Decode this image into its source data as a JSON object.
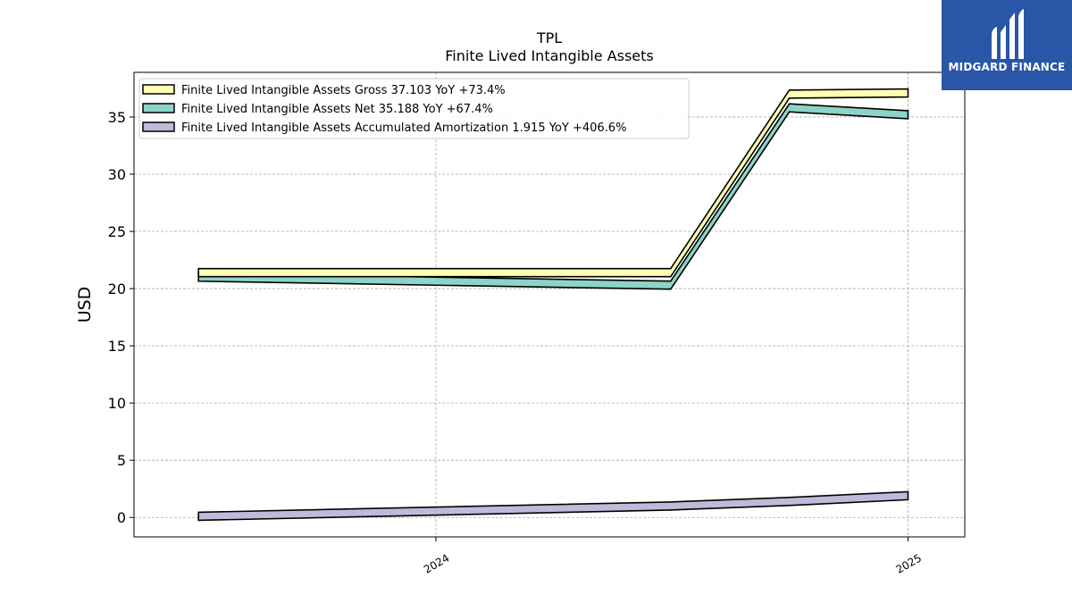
{
  "chart_data": {
    "type": "line",
    "title": "TPL",
    "subtitle": "Finite Lived Intangible Assets",
    "ylabel": "USD",
    "xlabel": "",
    "x": [
      "2023-07-01",
      "2024-07-01",
      "2024-10-01",
      "2025-01-01"
    ],
    "x_ticks": [
      "2024-01-01",
      "2025-01-01"
    ],
    "x_tick_labels": [
      "2024",
      "2025"
    ],
    "ylim": [
      -1.7,
      38.9
    ],
    "y_ticks": [
      0,
      5,
      10,
      15,
      20,
      25,
      30,
      35
    ],
    "grid": true,
    "legend_position": "top-left",
    "series": [
      {
        "name": "Finite Lived Intangible Assets Gross",
        "legend_label": "Finite Lived Intangible Assets Gross  37.103 YoY +73.4%",
        "values": [
          21.4,
          21.4,
          37.0,
          37.1
        ],
        "color": "#ffffb3"
      },
      {
        "name": "Finite Lived Intangible Assets Net",
        "legend_label": "Finite Lived Intangible Assets Net  35.188 YoY +67.4%",
        "values": [
          21.0,
          20.3,
          35.8,
          35.2
        ],
        "color": "#8dd3c7"
      },
      {
        "name": "Finite Lived Intangible Assets Accumulated Amortization",
        "legend_label": "Finite Lived Intangible Assets Accumulated Amortization  1.915 YoY +406.6%",
        "values": [
          0.1,
          1.0,
          1.4,
          1.9
        ],
        "color": "#bebada"
      }
    ]
  },
  "logo": {
    "text": "MIDGARD FINANCE"
  }
}
